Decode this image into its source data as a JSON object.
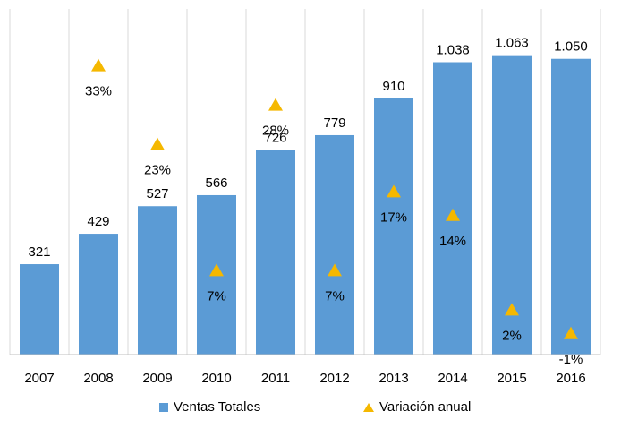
{
  "chart_data": {
    "type": "bar",
    "categories": [
      "2007",
      "2008",
      "2009",
      "2010",
      "2011",
      "2012",
      "2013",
      "2014",
      "2015",
      "2016"
    ],
    "series": [
      {
        "name": "Ventas Totales",
        "kind": "bar",
        "values": [
          321,
          429,
          527,
          566,
          726,
          779,
          910,
          1038,
          1063,
          1050
        ],
        "labels": [
          "321",
          "429",
          "527",
          "566",
          "726",
          "779",
          "910",
          "1.038",
          "1.063",
          "1.050"
        ],
        "color": "#5b9bd5"
      },
      {
        "name": "Variación anual",
        "kind": "marker",
        "values": [
          null,
          33,
          23,
          7,
          28,
          7,
          17,
          14,
          2,
          -1
        ],
        "labels": [
          "",
          "33%",
          "23%",
          "7%",
          "28%",
          "7%",
          "17%",
          "14%",
          "2%",
          "-1%"
        ],
        "color": "#f5b800"
      }
    ],
    "ylim": [
      0,
      1100
    ],
    "grid": "vertical",
    "legend_position": "bottom"
  }
}
